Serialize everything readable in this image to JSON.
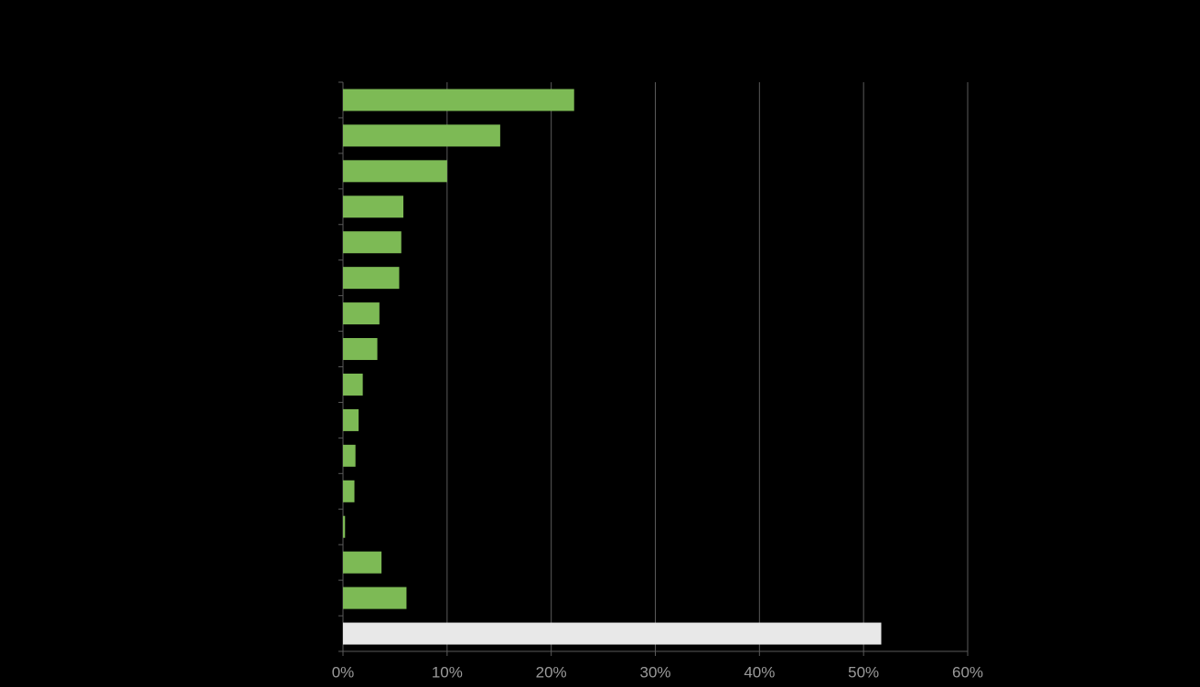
{
  "chart_data": {
    "type": "hbar",
    "categories": [
      null,
      null,
      null,
      null,
      null,
      null,
      null,
      null,
      null,
      null,
      null,
      null,
      null,
      null,
      null,
      null
    ],
    "values": [
      22.2,
      15.1,
      10.0,
      5.8,
      5.6,
      5.4,
      3.5,
      3.3,
      1.9,
      1.5,
      1.2,
      1.1,
      0.2,
      3.7,
      6.1,
      51.7
    ],
    "colors": [
      "#7dba55",
      "#7dba55",
      "#7dba55",
      "#7dba55",
      "#7dba55",
      "#7dba55",
      "#7dba55",
      "#7dba55",
      "#7dba55",
      "#7dba55",
      "#7dba55",
      "#7dba55",
      "#7dba55",
      "#7dba55",
      "#7dba55",
      "#e8e8e8"
    ],
    "xlim": [
      0,
      60
    ],
    "xticks": [
      {
        "value": 0,
        "label": "0%"
      },
      {
        "value": 10,
        "label": "10%"
      },
      {
        "value": 20,
        "label": "20%"
      },
      {
        "value": 30,
        "label": "30%"
      },
      {
        "value": 40,
        "label": "40%"
      },
      {
        "value": 50,
        "label": "50%"
      },
      {
        "value": 60,
        "label": "60%"
      }
    ],
    "grid": true
  }
}
